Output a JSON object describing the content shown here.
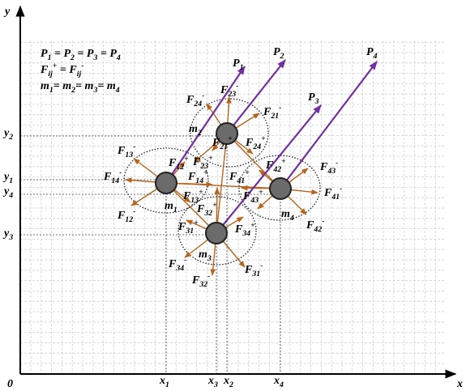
{
  "axes": {
    "y_label": "y",
    "x_label": "x",
    "origin": "0",
    "y_ticks": [
      {
        "b": "y",
        "sub": "2"
      },
      {
        "b": "y",
        "sub": "1"
      },
      {
        "b": "y",
        "sub": "4"
      },
      {
        "b": "y",
        "sub": "3"
      }
    ],
    "x_ticks": [
      {
        "b": "x",
        "sub": "1"
      },
      {
        "b": "x",
        "sub": "3"
      },
      {
        "b": "x",
        "sub": "2"
      },
      {
        "b": "x",
        "sub": "4"
      }
    ]
  },
  "notes": [
    [
      {
        "b": "P",
        "sub": "1"
      },
      {
        "b": " = P",
        "sub": "2"
      },
      {
        "b": " = P",
        "sub": "3"
      },
      {
        "b": " = P",
        "sub": "4"
      }
    ],
    [
      {
        "b": "F",
        "sub": "ij",
        "sup": "+"
      },
      {
        "b": " = F",
        "sub": "ij",
        "sup": "-"
      }
    ],
    [
      {
        "b": "m",
        "sub": "1"
      },
      {
        "b": "= m",
        "sub": "2"
      },
      {
        "b": "= m",
        "sub": "3"
      },
      {
        "b": "= m",
        "sub": "4"
      }
    ]
  ],
  "momenta": [
    {
      "b": "P",
      "sub": "1"
    },
    {
      "b": "P",
      "sub": "2"
    },
    {
      "b": "P",
      "sub": "3"
    },
    {
      "b": "P",
      "sub": "4"
    }
  ],
  "masses": [
    {
      "b": "m",
      "sub": "1"
    },
    {
      "b": "m",
      "sub": "2"
    },
    {
      "b": "m",
      "sub": "3"
    },
    {
      "b": "m",
      "sub": "4"
    }
  ],
  "forces": [
    {
      "b": "F",
      "sub": "24",
      "sup": "-"
    },
    {
      "b": "F",
      "sub": "23",
      "sup": "-"
    },
    {
      "b": "F",
      "sub": "21",
      "sup": "-"
    },
    {
      "b": "F",
      "sub": "21",
      "sup": "+"
    },
    {
      "b": "F",
      "sub": "24",
      "sup": "+"
    },
    {
      "b": "F",
      "sub": "13",
      "sup": "-"
    },
    {
      "b": "F",
      "sub": "12",
      "sup": "+"
    },
    {
      "b": "F",
      "sub": "23",
      "sup": "+"
    },
    {
      "b": "F",
      "sub": "14",
      "sup": "-"
    },
    {
      "b": "F",
      "sub": "14",
      "sup": "+"
    },
    {
      "b": "F",
      "sub": "41",
      "sup": "+"
    },
    {
      "b": "F",
      "sub": "42",
      "sup": "+"
    },
    {
      "b": "F",
      "sub": "43",
      "sup": "-"
    },
    {
      "b": "F",
      "sub": "41",
      "sup": "-"
    },
    {
      "b": "F",
      "sub": "43",
      "sup": "+"
    },
    {
      "b": "F",
      "sub": "13",
      "sup": "+"
    },
    {
      "b": "F",
      "sub": "32",
      "sup": "+"
    },
    {
      "b": "F",
      "sub": "12",
      "sup": "-"
    },
    {
      "b": "F",
      "sub": "42",
      "sup": "-"
    },
    {
      "b": "F",
      "sub": "31",
      "sup": "+"
    },
    {
      "b": "F",
      "sub": "34",
      "sup": "+"
    },
    {
      "b": "F",
      "sub": "34",
      "sup": "-"
    },
    {
      "b": "F",
      "sub": "31",
      "sup": "-"
    },
    {
      "b": "F",
      "sub": "32",
      "sup": "-"
    }
  ]
}
